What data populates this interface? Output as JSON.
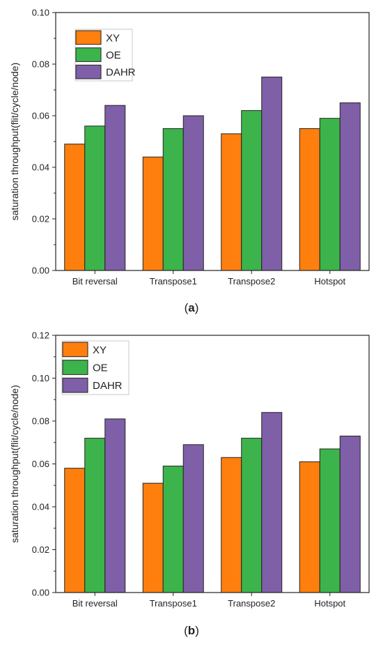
{
  "chart_data": [
    {
      "type": "bar",
      "panel_label": "a",
      "categories": [
        "Bit reversal",
        "Transpose1",
        "Transpose2",
        "Hotspot"
      ],
      "series": [
        {
          "name": "XY",
          "color": "#ff7f0e",
          "values": [
            0.049,
            0.044,
            0.053,
            0.055
          ]
        },
        {
          "name": "OE",
          "color": "#3cb44b",
          "values": [
            0.056,
            0.055,
            0.062,
            0.059
          ]
        },
        {
          "name": "DAHR",
          "color": "#7f5fa8",
          "values": [
            0.064,
            0.06,
            0.075,
            0.065
          ]
        }
      ],
      "title": "",
      "xlabel": "",
      "ylabel": "saturation throughput(flit/cycle/node)",
      "ylim": [
        0,
        0.1
      ],
      "yticks": [
        "0.00",
        "0.02",
        "0.04",
        "0.06",
        "0.08",
        "0.10"
      ],
      "grid": false,
      "legend_position": "top-left"
    },
    {
      "type": "bar",
      "panel_label": "b",
      "categories": [
        "Bit reversal",
        "Transpose1",
        "Transpose2",
        "Hotspot"
      ],
      "series": [
        {
          "name": "XY",
          "color": "#ff7f0e",
          "values": [
            0.058,
            0.051,
            0.063,
            0.061
          ]
        },
        {
          "name": "OE",
          "color": "#3cb44b",
          "values": [
            0.072,
            0.059,
            0.072,
            0.067
          ]
        },
        {
          "name": "DAHR",
          "color": "#7f5fa8",
          "values": [
            0.081,
            0.069,
            0.084,
            0.073
          ]
        }
      ],
      "title": "",
      "xlabel": "",
      "ylabel": "saturation throughput(flit/cycle/node)",
      "ylim": [
        0,
        0.12
      ],
      "yticks": [
        "0.00",
        "0.02",
        "0.04",
        "0.06",
        "0.08",
        "0.10",
        "0.12"
      ],
      "grid": false,
      "legend_position": "top-left"
    }
  ]
}
